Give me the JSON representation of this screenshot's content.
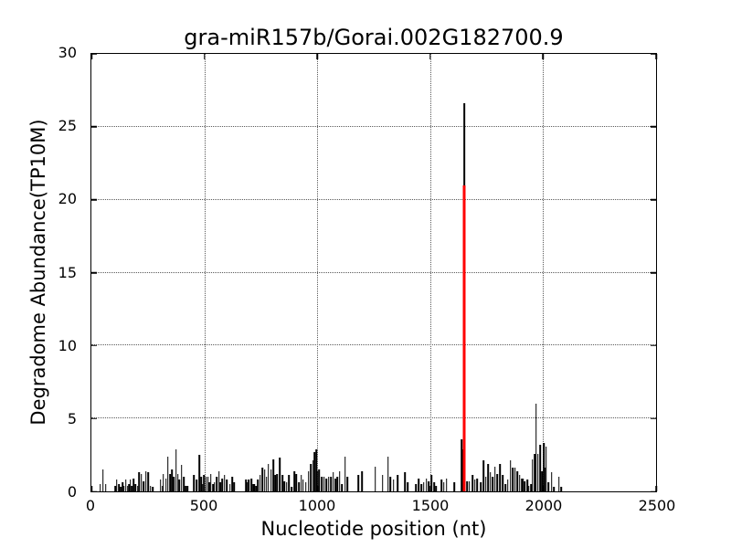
{
  "chart_data": {
    "type": "bar",
    "title": "gra-miR157b/Gorai.002G182700.9",
    "xlabel": "Nucleotide position (nt)",
    "ylabel": "Degradome Abundance(TP10M)",
    "xlim": [
      0,
      2500
    ],
    "ylim": [
      0,
      30
    ],
    "x_ticks": [
      0,
      500,
      1000,
      1500,
      2000,
      2500
    ],
    "y_ticks": [
      0,
      5,
      10,
      15,
      20,
      25,
      30
    ],
    "grid": {
      "visible": true,
      "style": "dotted",
      "on_major_ticks": true
    },
    "colors": {
      "background_spikes": "#000000",
      "highlight_peak": "#ff0000",
      "text": "#000000",
      "plot_background": "#ffffff"
    },
    "main_peak": {
      "x": 1650,
      "red_height": 21.0,
      "total_height": 26.6
    },
    "background_spikes": [
      [
        40,
        0.5
      ],
      [
        52,
        1.5
      ],
      [
        63,
        0.5
      ],
      [
        105,
        0.4
      ],
      [
        112,
        0.8
      ],
      [
        122,
        0.5
      ],
      [
        130,
        0.3
      ],
      [
        138,
        0.6
      ],
      [
        145,
        0.4
      ],
      [
        152,
        0.8
      ],
      [
        160,
        0.4
      ],
      [
        166,
        0.5
      ],
      [
        172,
        0.8
      ],
      [
        180,
        0.4
      ],
      [
        188,
        0.9
      ],
      [
        196,
        0.5
      ],
      [
        205,
        0.4
      ],
      [
        212,
        1.3
      ],
      [
        222,
        1.2
      ],
      [
        232,
        0.7
      ],
      [
        241,
        1.4
      ],
      [
        252,
        1.3
      ],
      [
        262,
        0.4
      ],
      [
        272,
        0.3
      ],
      [
        306,
        0.8
      ],
      [
        314,
        0.4
      ],
      [
        319,
        1.2
      ],
      [
        330,
        0.9
      ],
      [
        339,
        2.4
      ],
      [
        348,
        1.2
      ],
      [
        356,
        1.5
      ],
      [
        365,
        1.0
      ],
      [
        375,
        2.9
      ],
      [
        383,
        1.2
      ],
      [
        390,
        0.8
      ],
      [
        399,
        1.8
      ],
      [
        409,
        1.0
      ],
      [
        418,
        0.4
      ],
      [
        425,
        0.4
      ],
      [
        455,
        1.1
      ],
      [
        466,
        0.8
      ],
      [
        477,
        2.5
      ],
      [
        486,
        1.0
      ],
      [
        493,
        0.5
      ],
      [
        499,
        1.1
      ],
      [
        508,
        1.0
      ],
      [
        516,
        1.0
      ],
      [
        523,
        0.6
      ],
      [
        529,
        1.2
      ],
      [
        538,
        0.5
      ],
      [
        545,
        0.6
      ],
      [
        556,
        1.0
      ],
      [
        565,
        1.4
      ],
      [
        572,
        0.6
      ],
      [
        579,
        0.9
      ],
      [
        590,
        1.1
      ],
      [
        600,
        0.8
      ],
      [
        614,
        0.5
      ],
      [
        623,
        1.0
      ],
      [
        633,
        0.6
      ],
      [
        684,
        0.8
      ],
      [
        690,
        0.6
      ],
      [
        697,
        0.8
      ],
      [
        708,
        0.9
      ],
      [
        716,
        0.5
      ],
      [
        722,
        0.5
      ],
      [
        730,
        0.4
      ],
      [
        738,
        0.8
      ],
      [
        748,
        1.1
      ],
      [
        757,
        1.6
      ],
      [
        767,
        1.5
      ],
      [
        775,
        1.0
      ],
      [
        784,
        1.9
      ],
      [
        795,
        1.5
      ],
      [
        806,
        2.2
      ],
      [
        814,
        1.1
      ],
      [
        822,
        1.2
      ],
      [
        835,
        2.3
      ],
      [
        846,
        1.1
      ],
      [
        855,
        0.7
      ],
      [
        865,
        0.6
      ],
      [
        875,
        1.1
      ],
      [
        887,
        0.3
      ],
      [
        898,
        1.4
      ],
      [
        907,
        1.2
      ],
      [
        918,
        0.6
      ],
      [
        929,
        1.1
      ],
      [
        938,
        0.8
      ],
      [
        949,
        0.6
      ],
      [
        962,
        1.4
      ],
      [
        972,
        1.9
      ],
      [
        982,
        2.1
      ],
      [
        989,
        2.7
      ],
      [
        995,
        2.9
      ],
      [
        1002,
        1.4
      ],
      [
        1009,
        1.5
      ],
      [
        1021,
        1.0
      ],
      [
        1031,
        1.0
      ],
      [
        1041,
        0.9
      ],
      [
        1051,
        1.0
      ],
      [
        1060,
        1.0
      ],
      [
        1070,
        1.3
      ],
      [
        1081,
        0.9
      ],
      [
        1090,
        1.0
      ],
      [
        1099,
        1.4
      ],
      [
        1110,
        0.5
      ],
      [
        1123,
        2.4
      ],
      [
        1134,
        1.0
      ],
      [
        1183,
        1.1
      ],
      [
        1199,
        1.4
      ],
      [
        1257,
        1.7
      ],
      [
        1289,
        1.1
      ],
      [
        1313,
        2.4
      ],
      [
        1324,
        1.0
      ],
      [
        1337,
        0.8
      ],
      [
        1357,
        1.1
      ],
      [
        1388,
        1.3
      ],
      [
        1400,
        0.6
      ],
      [
        1436,
        0.5
      ],
      [
        1450,
        0.9
      ],
      [
        1460,
        0.5
      ],
      [
        1471,
        0.6
      ],
      [
        1483,
        0.9
      ],
      [
        1494,
        0.7
      ],
      [
        1506,
        1.1
      ],
      [
        1517,
        0.6
      ],
      [
        1527,
        0.4
      ],
      [
        1550,
        0.8
      ],
      [
        1561,
        0.6
      ],
      [
        1573,
        0.9
      ],
      [
        1608,
        0.6
      ],
      [
        1638,
        3.6
      ],
      [
        1643,
        2.9
      ],
      [
        1663,
        0.7
      ],
      [
        1673,
        0.7
      ],
      [
        1687,
        1.1
      ],
      [
        1698,
        0.8
      ],
      [
        1709,
        0.9
      ],
      [
        1723,
        0.6
      ],
      [
        1736,
        2.1
      ],
      [
        1747,
        1.0
      ],
      [
        1756,
        1.9
      ],
      [
        1767,
        1.3
      ],
      [
        1776,
        1.0
      ],
      [
        1787,
        1.7
      ],
      [
        1798,
        1.2
      ],
      [
        1810,
        1.9
      ],
      [
        1821,
        1.1
      ],
      [
        1833,
        0.5
      ],
      [
        1843,
        0.8
      ],
      [
        1856,
        2.1
      ],
      [
        1866,
        1.6
      ],
      [
        1876,
        1.6
      ],
      [
        1886,
        1.4
      ],
      [
        1896,
        1.1
      ],
      [
        1905,
        0.9
      ],
      [
        1912,
        0.9
      ],
      [
        1919,
        0.7
      ],
      [
        1930,
        0.8
      ],
      [
        1937,
        0.4
      ],
      [
        1947,
        0.5
      ],
      [
        1953,
        2.2
      ],
      [
        1962,
        2.6
      ],
      [
        1969,
        6.0
      ],
      [
        1977,
        2.6
      ],
      [
        1986,
        3.2
      ],
      [
        1994,
        1.4
      ],
      [
        2004,
        3.3
      ],
      [
        2010,
        1.6
      ],
      [
        2014,
        3.1
      ],
      [
        2023,
        0.6
      ],
      [
        2037,
        1.3
      ],
      [
        2047,
        0.3
      ],
      [
        2070,
        1.0
      ],
      [
        2081,
        0.3
      ]
    ]
  }
}
